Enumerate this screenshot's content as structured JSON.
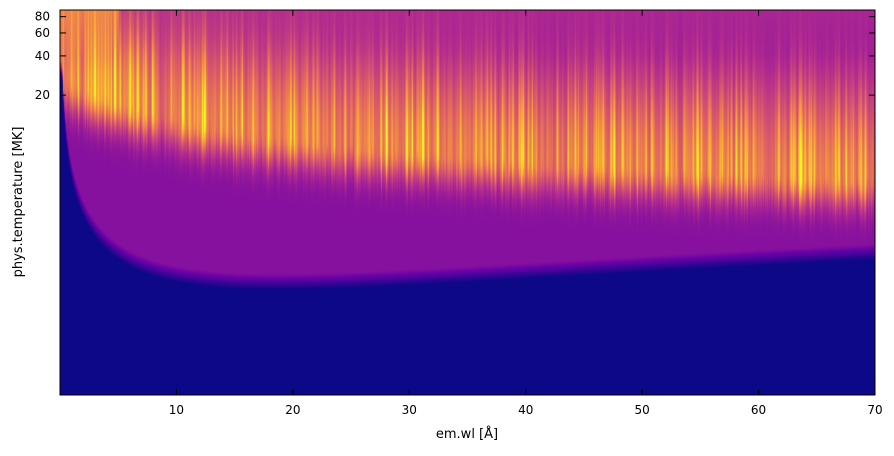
{
  "chart_data": {
    "type": "heatmap",
    "title": "",
    "xlabel": "em.wl [Å]",
    "ylabel": "phys.temperature [MK]",
    "xlim": [
      0,
      70
    ],
    "ylim": [
      0.1,
      90
    ],
    "yscale": "log",
    "grid": false,
    "legend": "none",
    "x_ticks": [
      10,
      20,
      30,
      40,
      50,
      60,
      70
    ],
    "x_tick_labels": [
      "10",
      "20",
      "30",
      "40",
      "50",
      "60",
      "70"
    ],
    "y_ticks": [
      20,
      40,
      60,
      80
    ],
    "y_tick_labels": [
      "20",
      "40",
      "60",
      "80"
    ],
    "colormap": [
      "#0d0887",
      "#6a00a8",
      "#b12a90",
      "#e16462",
      "#fca636",
      "#f0f921"
    ],
    "background_color": "#0d0887",
    "upper_color": "#8a0ea8"
  }
}
